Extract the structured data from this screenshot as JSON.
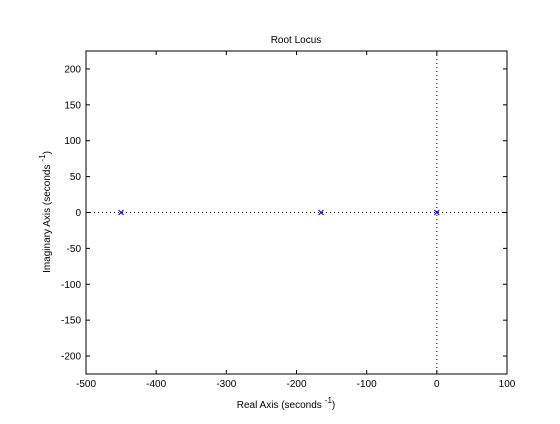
{
  "chart_data": {
    "type": "scatter",
    "title": "Root Locus",
    "xlabel": "Real Axis (seconds",
    "ylabel": "Imaginary Axis (seconds",
    "axis_unit_exponent": "-1",
    "xlim": [
      -500,
      100
    ],
    "ylim": [
      -225,
      225
    ],
    "xticks": [
      -500,
      -400,
      -300,
      -200,
      -100,
      0,
      100
    ],
    "yticks": [
      -200,
      -150,
      -100,
      -50,
      0,
      50,
      100,
      150,
      200
    ],
    "grid": false,
    "reference_lines": {
      "x": 0,
      "y": 0,
      "style": "dotted"
    },
    "series": [
      {
        "marker": "x",
        "color": "#0000ff",
        "points": [
          {
            "x": -450,
            "y": 0
          },
          {
            "x": -165,
            "y": 0
          },
          {
            "x": 0,
            "y": 0
          }
        ]
      }
    ]
  }
}
